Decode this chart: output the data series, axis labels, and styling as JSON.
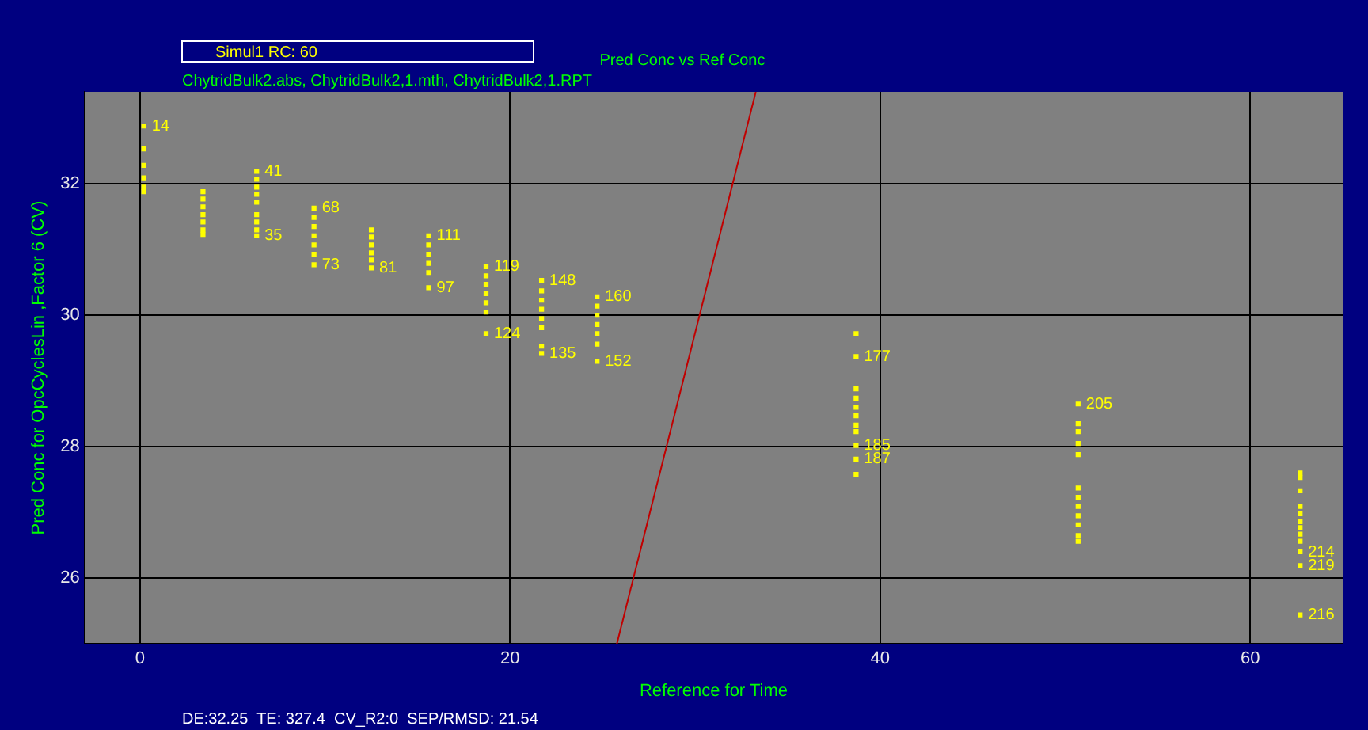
{
  "chart_data": {
    "type": "scatter",
    "title": "Pred Conc vs Ref Conc",
    "xlabel": "Reference for Time",
    "ylabel": "Pred Conc for OpcCyclesLin ,Factor 6 (CV)",
    "annotations": [
      "Simul1 RC: 60",
      "ChytridBulk2.abs, ChytridBulk2,1.mth, ChytridBulk2,1.RPT",
      "DE:32.25  TE: 327.4  CV_R2:0  SEP/RMSD: 21.54",
      {
        "text": "14",
        "x": 0.2,
        "y": 32.88
      },
      {
        "text": "41",
        "x": 6.3,
        "y": 32.19
      },
      {
        "text": "35",
        "x": 6.3,
        "y": 31.21
      },
      {
        "text": "68",
        "x": 9.4,
        "y": 31.63
      },
      {
        "text": "73",
        "x": 9.4,
        "y": 30.77
      },
      {
        "text": "81",
        "x": 12.5,
        "y": 30.72
      },
      {
        "text": "111",
        "x": 15.6,
        "y": 31.21
      },
      {
        "text": "97",
        "x": 15.6,
        "y": 30.42
      },
      {
        "text": "119",
        "x": 18.7,
        "y": 30.74
      },
      {
        "text": "124",
        "x": 18.7,
        "y": 29.72
      },
      {
        "text": "148",
        "x": 21.7,
        "y": 30.53
      },
      {
        "text": "135",
        "x": 21.7,
        "y": 29.42
      },
      {
        "text": "160",
        "x": 24.7,
        "y": 30.28
      },
      {
        "text": "152",
        "x": 24.7,
        "y": 29.3
      },
      {
        "text": "177",
        "x": 38.7,
        "y": 29.37
      },
      {
        "text": "185",
        "x": 38.7,
        "y": 28.02
      },
      {
        "text": "187",
        "x": 38.7,
        "y": 27.81
      },
      {
        "text": "205",
        "x": 50.7,
        "y": 28.65
      },
      {
        "text": "214",
        "x": 62.7,
        "y": 26.4
      },
      {
        "text": "219",
        "x": 62.7,
        "y": 26.19
      },
      {
        "text": "216",
        "x": 62.7,
        "y": 25.44
      }
    ],
    "xlim": [
      -3,
      65
    ],
    "ylim": [
      25,
      33.4
    ],
    "xticks": [
      0,
      20,
      40,
      60
    ],
    "yticks": [
      26,
      28,
      30,
      32
    ],
    "grid": true,
    "series": [
      {
        "color": "#ffff00",
        "marker": "square",
        "x": [
          0.2,
          0.2,
          0.2,
          0.2,
          0.2,
          0.2,
          3.4,
          3.4,
          3.4,
          3.4,
          3.4,
          3.4,
          3.4,
          6.3,
          6.3,
          6.3,
          6.3,
          6.3,
          6.3,
          6.3,
          6.3,
          6.3,
          9.4,
          9.4,
          9.4,
          9.4,
          9.4,
          9.4,
          9.4,
          12.5,
          12.5,
          12.5,
          12.5,
          12.5,
          12.5,
          15.6,
          15.6,
          15.6,
          15.6,
          15.6,
          15.6,
          18.7,
          18.7,
          18.7,
          18.7,
          18.7,
          18.7,
          18.7,
          21.7,
          21.7,
          21.7,
          21.7,
          21.7,
          21.7,
          21.7,
          21.7,
          24.7,
          24.7,
          24.7,
          24.7,
          24.7,
          24.7,
          24.7,
          38.7,
          38.7,
          38.7,
          38.7,
          38.7,
          38.7,
          38.7,
          38.7,
          38.7,
          38.7,
          38.7,
          50.7,
          50.7,
          50.7,
          50.7,
          50.7,
          50.7,
          50.7,
          50.7,
          50.7,
          50.7,
          50.7,
          50.7,
          62.7,
          62.7,
          62.7,
          62.7,
          62.7,
          62.7,
          62.7,
          62.7,
          62.7,
          62.7,
          62.7,
          62.7
        ],
        "values": [
          32.88,
          32.53,
          32.28,
          32.09,
          31.95,
          31.88,
          31.88,
          31.77,
          31.65,
          31.53,
          31.42,
          31.3,
          31.23,
          32.19,
          32.07,
          31.95,
          31.84,
          31.72,
          31.53,
          31.42,
          31.3,
          31.21,
          31.63,
          31.49,
          31.35,
          31.21,
          31.07,
          30.93,
          30.77,
          31.3,
          31.19,
          31.07,
          30.95,
          30.84,
          30.72,
          31.21,
          31.07,
          30.93,
          30.79,
          30.65,
          30.42,
          30.74,
          30.6,
          30.47,
          30.33,
          30.19,
          30.05,
          29.72,
          30.53,
          30.37,
          30.23,
          30.09,
          29.95,
          29.81,
          29.53,
          29.42,
          30.28,
          30.14,
          30.0,
          29.86,
          29.72,
          29.56,
          29.3,
          29.72,
          29.37,
          28.88,
          28.74,
          28.6,
          28.47,
          28.33,
          28.23,
          28.02,
          27.81,
          27.58,
          28.65,
          28.35,
          28.23,
          28.05,
          27.88,
          27.37,
          27.23,
          27.09,
          26.95,
          26.81,
          26.65,
          26.56,
          27.6,
          27.53,
          27.33,
          27.09,
          26.98,
          26.86,
          26.77,
          26.67,
          26.56,
          26.4,
          26.19,
          25.44
        ]
      },
      {
        "type": "line",
        "color": "#c00000",
        "x": [
          25.77,
          33.28
        ],
        "values": [
          25,
          33.4
        ]
      }
    ]
  }
}
